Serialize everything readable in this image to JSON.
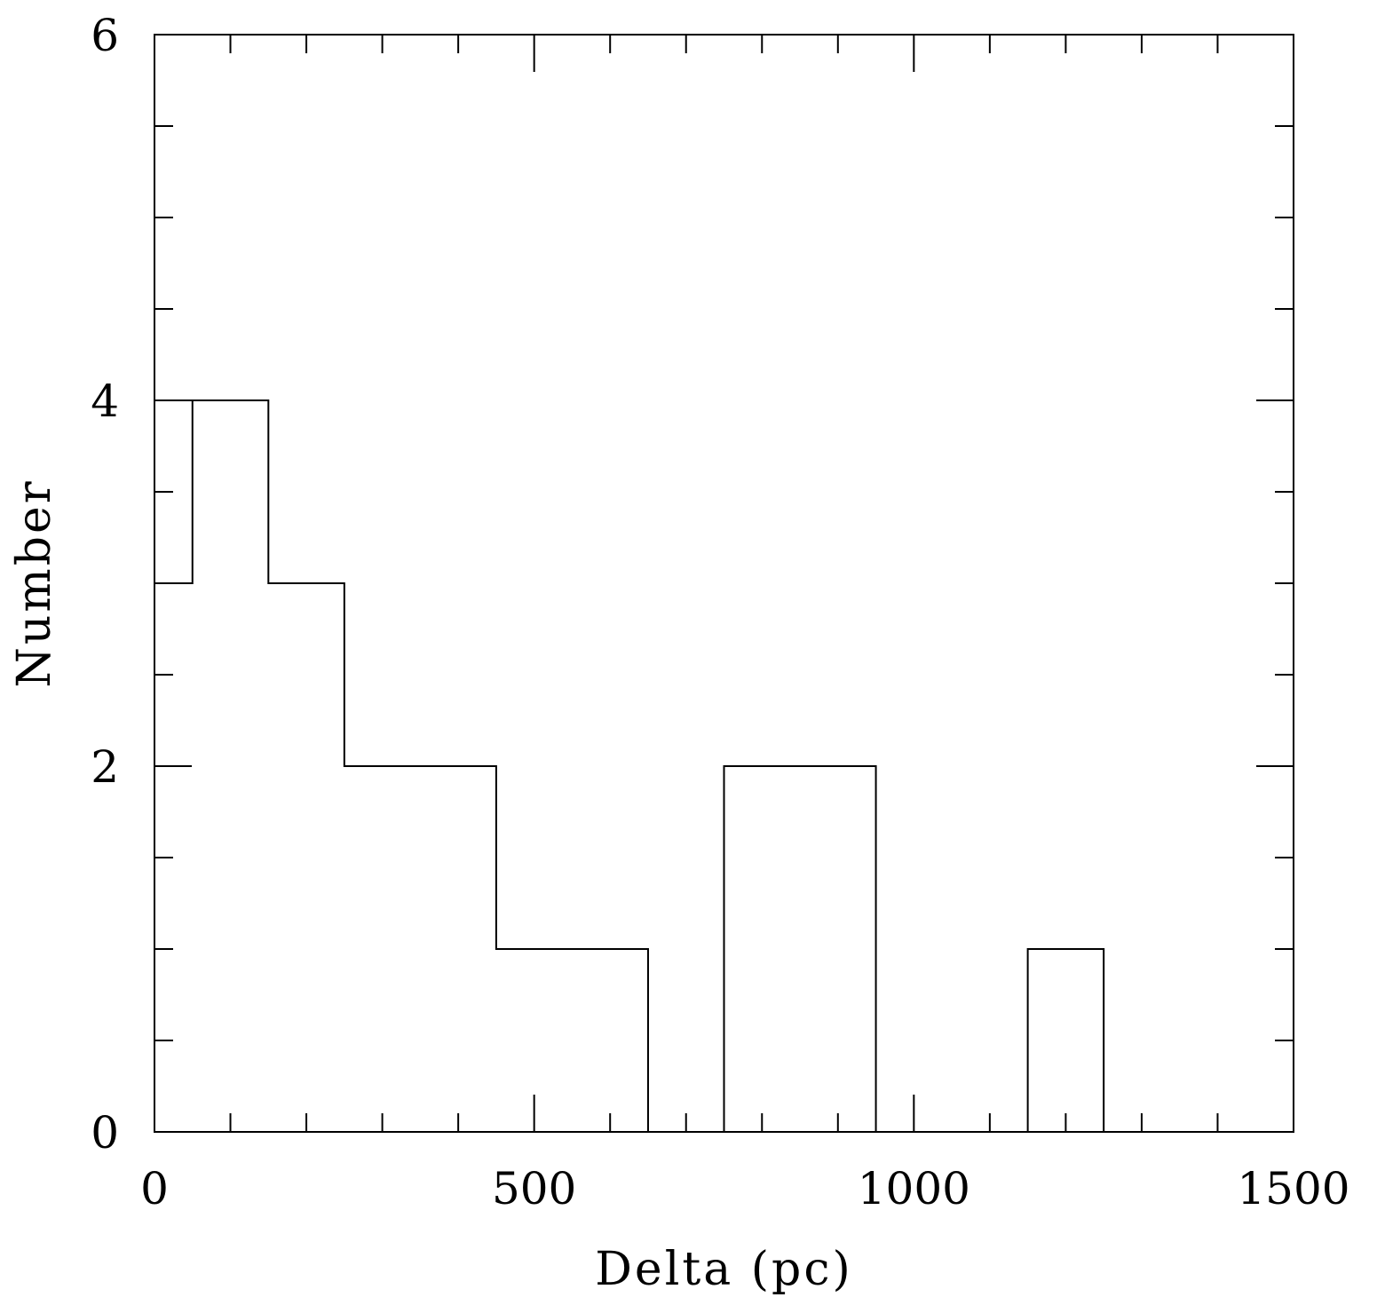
{
  "chart_data": {
    "type": "bar",
    "style": "step-histogram",
    "xlabel": "Delta (pc)",
    "ylabel": "Number",
    "xlim": [
      0,
      1500
    ],
    "ylim": [
      0,
      6
    ],
    "x_major_ticks": [
      0,
      500,
      1000,
      1500
    ],
    "x_minor_step": 100,
    "y_major_ticks": [
      0,
      2,
      4,
      6
    ],
    "y_minor_step": 0.5,
    "x_tick_labels": [
      "0",
      "500",
      "1000",
      "1500"
    ],
    "y_tick_labels": [
      "0",
      "2",
      "4",
      "6"
    ],
    "bin_edges": [
      0,
      50,
      150,
      250,
      350,
      450,
      550,
      650,
      750,
      850,
      950,
      1050,
      1150,
      1250
    ],
    "values": [
      3,
      4,
      3,
      2,
      2,
      1,
      1,
      0,
      2,
      2,
      0,
      0,
      1
    ],
    "grid": false,
    "line_color": "#000000"
  }
}
